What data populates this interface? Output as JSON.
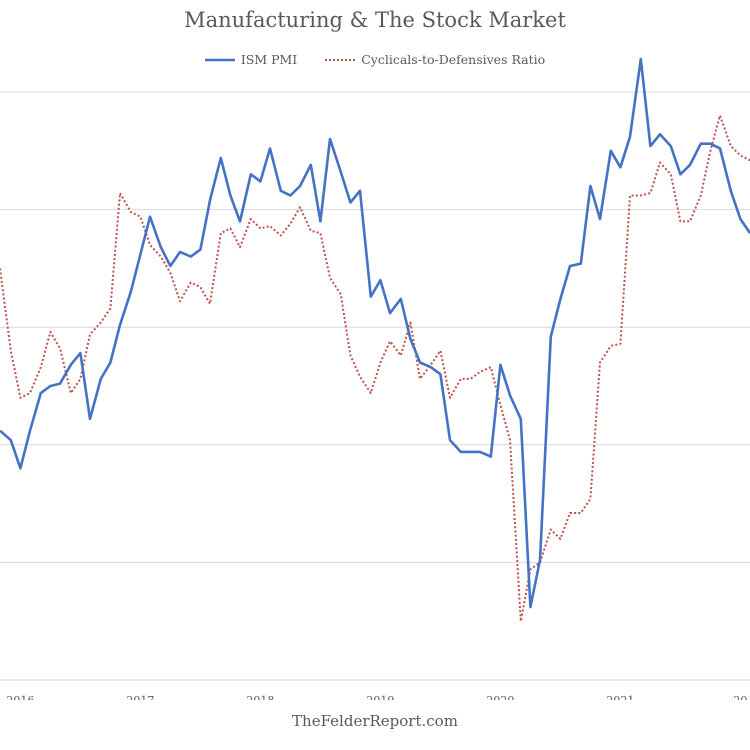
{
  "chart_data": {
    "type": "line",
    "title": "Manufacturing & The Stock Market",
    "legend_position": "top",
    "grid": true,
    "x_ticks": [
      "2016",
      "2017",
      "2018",
      "2019",
      "2020",
      "2021",
      "20"
    ],
    "xlim": [
      2015.83,
      2022.08
    ],
    "ylim": [
      38,
      63
    ],
    "series": [
      {
        "name": "ISM PMI",
        "color": "#4472C4",
        "style": "solid",
        "x": [
          2015.83,
          2015.92,
          2016.0,
          2016.08,
          2016.17,
          2016.25,
          2016.33,
          2016.42,
          2016.5,
          2016.58,
          2016.67,
          2016.75,
          2016.83,
          2016.92,
          2017.0,
          2017.08,
          2017.17,
          2017.25,
          2017.33,
          2017.42,
          2017.5,
          2017.58,
          2017.67,
          2017.75,
          2017.83,
          2017.92,
          2018.0,
          2018.08,
          2018.17,
          2018.25,
          2018.33,
          2018.42,
          2018.5,
          2018.58,
          2018.67,
          2018.75,
          2018.83,
          2018.92,
          2019.0,
          2019.08,
          2019.17,
          2019.25,
          2019.33,
          2019.42,
          2019.5,
          2019.58,
          2019.67,
          2019.75,
          2019.83,
          2019.92,
          2020.0,
          2020.08,
          2020.17,
          2020.25,
          2020.33,
          2020.42,
          2020.5,
          2020.58,
          2020.67,
          2020.75,
          2020.83,
          2020.92,
          2021.0,
          2021.08,
          2021.17,
          2021.25,
          2021.33,
          2021.42,
          2021.5,
          2021.58,
          2021.67,
          2021.75,
          2021.83,
          2021.92,
          2022.0,
          2022.08
        ],
        "y": [
          48.6,
          48.2,
          47.0,
          48.6,
          50.2,
          50.5,
          50.6,
          51.4,
          51.9,
          49.1,
          50.8,
          51.5,
          53.1,
          54.5,
          56.1,
          57.7,
          56.4,
          55.6,
          56.2,
          56.0,
          56.3,
          58.4,
          60.2,
          58.6,
          57.5,
          59.5,
          59.2,
          60.6,
          58.8,
          58.6,
          59.0,
          59.9,
          57.5,
          61.0,
          59.6,
          58.3,
          58.8,
          54.3,
          55.0,
          53.6,
          54.2,
          52.5,
          51.5,
          51.3,
          51.0,
          48.2,
          47.7,
          47.7,
          47.7,
          47.5,
          51.4,
          50.1,
          49.1,
          41.1,
          43.1,
          52.6,
          54.2,
          55.6,
          55.7,
          59.0,
          57.6,
          60.5,
          59.8,
          61.1,
          64.4,
          60.7,
          61.2,
          60.7,
          59.5,
          59.9,
          60.8,
          60.8,
          60.6,
          58.8,
          57.6,
          57.0
        ]
      },
      {
        "name": "Cyclicals-to-Defensives Ratio",
        "color": "#C0504D",
        "style": "dotted",
        "x": [
          2015.83,
          2015.92,
          2016.0,
          2016.08,
          2016.17,
          2016.25,
          2016.33,
          2016.42,
          2016.5,
          2016.58,
          2016.67,
          2016.75,
          2016.83,
          2016.92,
          2017.0,
          2017.08,
          2017.17,
          2017.25,
          2017.33,
          2017.42,
          2017.5,
          2017.58,
          2017.67,
          2017.75,
          2017.83,
          2017.92,
          2018.0,
          2018.08,
          2018.17,
          2018.25,
          2018.33,
          2018.42,
          2018.5,
          2018.58,
          2018.67,
          2018.75,
          2018.83,
          2018.92,
          2019.0,
          2019.08,
          2019.17,
          2019.25,
          2019.33,
          2019.42,
          2019.5,
          2019.58,
          2019.67,
          2019.75,
          2019.83,
          2019.92,
          2020.0,
          2020.08,
          2020.17,
          2020.25,
          2020.33,
          2020.42,
          2020.5,
          2020.58,
          2020.67,
          2020.75,
          2020.83,
          2020.92,
          2021.0,
          2021.08,
          2021.17,
          2021.25,
          2021.33,
          2021.42,
          2021.5,
          2021.58,
          2021.67,
          2021.75,
          2021.83,
          2021.92,
          2022.0,
          2022.08
        ],
        "y": [
          55.5,
          52.0,
          50.0,
          50.2,
          51.3,
          52.8,
          52.1,
          50.2,
          50.8,
          52.7,
          53.2,
          53.8,
          58.7,
          57.9,
          57.7,
          56.5,
          56.0,
          55.3,
          54.1,
          54.9,
          54.7,
          54.0,
          57.0,
          57.2,
          56.4,
          57.6,
          57.2,
          57.3,
          56.9,
          57.4,
          58.1,
          57.1,
          57.0,
          55.1,
          54.4,
          51.8,
          50.9,
          50.2,
          51.5,
          52.4,
          51.8,
          53.2,
          50.8,
          51.4,
          52.0,
          50.0,
          50.8,
          50.8,
          51.1,
          51.3,
          49.7,
          48.2,
          40.5,
          42.7,
          43.0,
          44.4,
          44.0,
          45.1,
          45.1,
          45.7,
          51.5,
          52.2,
          52.3,
          58.6,
          58.6,
          58.7,
          60.0,
          59.5,
          57.5,
          57.5,
          58.6,
          60.5,
          62.0,
          60.7,
          60.3,
          60.1
        ]
      }
    ]
  },
  "watermark": "TheFelderReport.com"
}
